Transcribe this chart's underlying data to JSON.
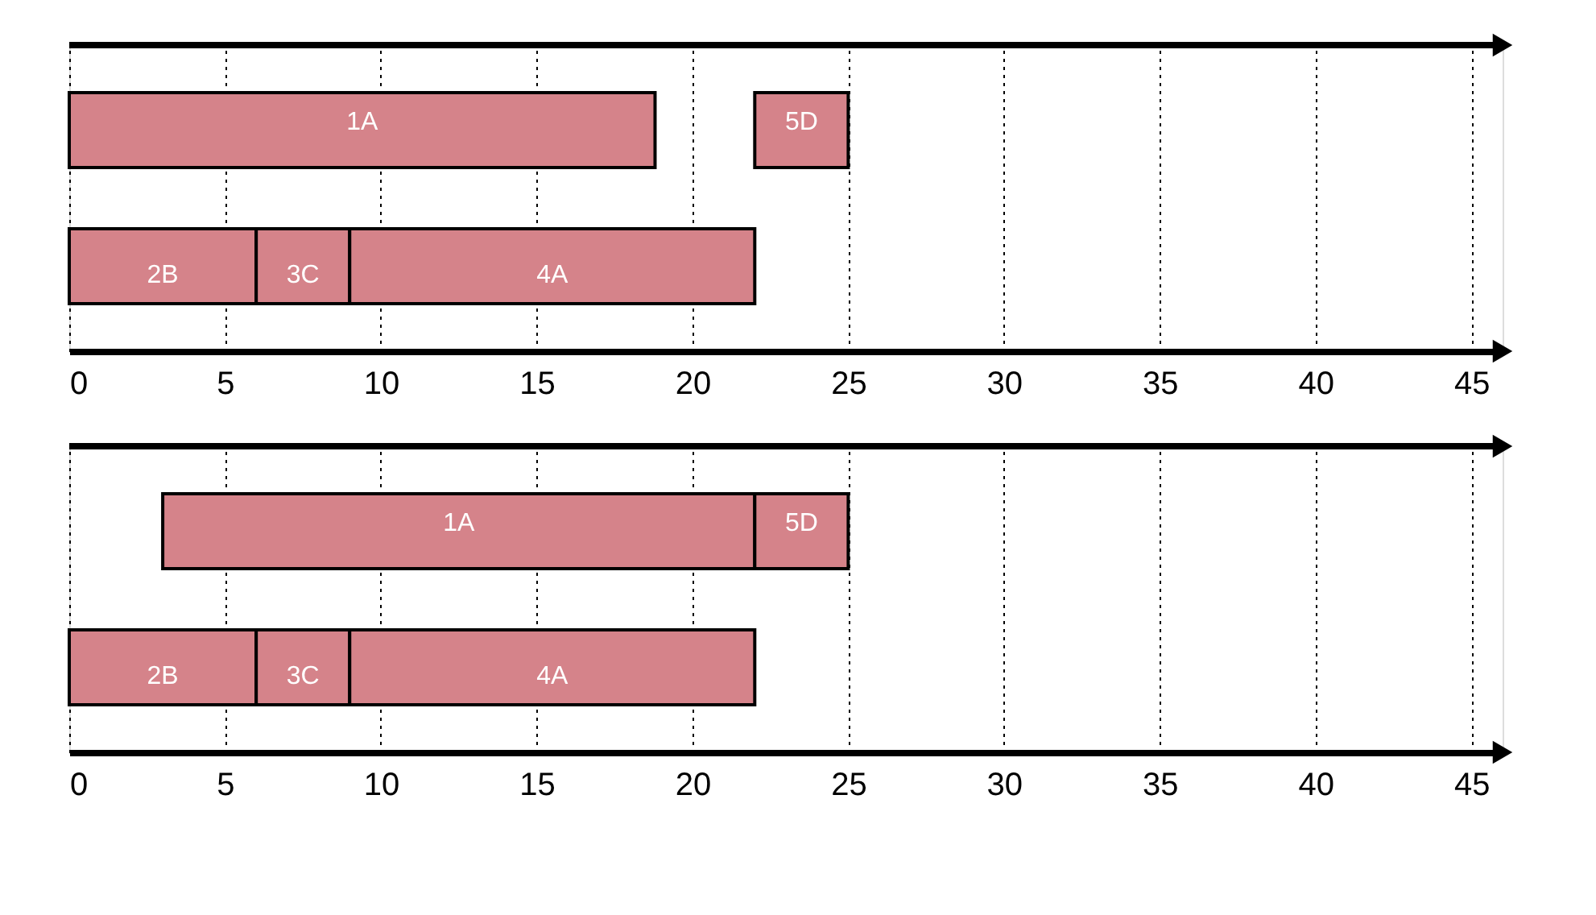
{
  "chart_data": [
    {
      "type": "bar",
      "orientation": "horizontal",
      "categories": [
        null,
        null
      ],
      "xlim": [
        0,
        46
      ],
      "xticks": [
        0,
        5,
        10,
        15,
        20,
        25,
        30,
        35,
        40,
        45
      ],
      "grid": "x",
      "legend": false,
      "series": [
        {
          "name": "1A",
          "color": "#d5838a",
          "values": [
            18.8,
            null
          ],
          "base": [
            0,
            null
          ]
        },
        {
          "name": "5D",
          "color": "#d5838a",
          "values": [
            3,
            null
          ],
          "base": [
            22,
            null
          ]
        },
        {
          "name": "2B",
          "color": "#d5838a",
          "values": [
            null,
            6
          ],
          "base": [
            null,
            0
          ]
        },
        {
          "name": "3C",
          "color": "#d5838a",
          "values": [
            null,
            3
          ],
          "base": [
            null,
            6
          ]
        },
        {
          "name": "4A",
          "color": "#d5838a",
          "values": [
            null,
            13
          ],
          "base": [
            null,
            9
          ]
        }
      ]
    },
    {
      "type": "bar",
      "orientation": "horizontal",
      "categories": [
        null,
        null
      ],
      "xlim": [
        0,
        46
      ],
      "xticks": [
        0,
        5,
        10,
        15,
        20,
        25,
        30,
        35,
        40,
        45
      ],
      "grid": "x",
      "legend": false,
      "series": [
        {
          "name": "1A",
          "color": "#d5838a",
          "values": [
            19,
            null
          ],
          "base": [
            3,
            null
          ]
        },
        {
          "name": "5D",
          "color": "#d5838a",
          "values": [
            3,
            null
          ],
          "base": [
            22,
            null
          ]
        },
        {
          "name": "2B",
          "color": "#d5838a",
          "values": [
            null,
            6
          ],
          "base": [
            null,
            0
          ]
        },
        {
          "name": "3C",
          "color": "#d5838a",
          "values": [
            null,
            3
          ],
          "base": [
            null,
            6
          ]
        },
        {
          "name": "4A",
          "color": "#d5838a",
          "values": [
            null,
            13
          ],
          "base": [
            null,
            9
          ]
        }
      ]
    }
  ]
}
